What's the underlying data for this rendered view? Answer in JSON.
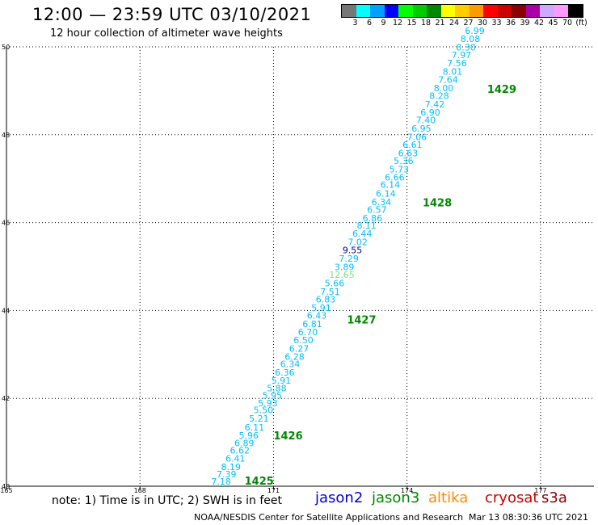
{
  "header": {
    "title": "12:00 — 23:59 UTC 03/10/2021",
    "subtitle": "12 hour collection of altimeter wave heights"
  },
  "legend": {
    "colors": [
      "#777777",
      "#00ffff",
      "#00a0ff",
      "#0000ff",
      "#00ff00",
      "#00cc00",
      "#008800",
      "#ffff00",
      "#ffcc00",
      "#ff9900",
      "#ff0000",
      "#cc0000",
      "#880000",
      "#aa00aa",
      "#ccaaff",
      "#ff99ff",
      "#000000"
    ],
    "labels": [
      "3",
      "6",
      "9",
      "12",
      "15",
      "18",
      "21",
      "24",
      "27",
      "30",
      "33",
      "36",
      "39",
      "42",
      "45",
      "70",
      "(ft)"
    ]
  },
  "axes": {
    "x_ticks": [
      "165",
      "168",
      "171",
      "174",
      "177"
    ],
    "y_ticks": [
      "40",
      "42",
      "44",
      "46",
      "48",
      "50"
    ]
  },
  "chart_data": {
    "type": "scatter",
    "xlim": [
      165,
      178.2
    ],
    "ylim": [
      40,
      50
    ],
    "grid": true,
    "label_colors": {
      "cyan": "#00bfff",
      "darkblue": "#000088",
      "lime": "#7fe07f",
      "green": "#008800"
    },
    "wave_heights_ft": [
      {
        "lon": 169.6,
        "lat": 40.04,
        "value": "7.18",
        "color": "cyan"
      },
      {
        "lon": 169.72,
        "lat": 40.2,
        "value": "7.39",
        "color": "cyan"
      },
      {
        "lon": 169.82,
        "lat": 40.37,
        "value": "8.19",
        "color": "cyan"
      },
      {
        "lon": 169.92,
        "lat": 40.56,
        "value": "6.41",
        "color": "cyan"
      },
      {
        "lon": 170.02,
        "lat": 40.74,
        "value": "6.62",
        "color": "cyan"
      },
      {
        "lon": 170.12,
        "lat": 40.91,
        "value": "6.89",
        "color": "cyan"
      },
      {
        "lon": 170.22,
        "lat": 41.08,
        "value": "5.96",
        "color": "cyan"
      },
      {
        "lon": 170.35,
        "lat": 41.27,
        "value": "6.11",
        "color": "cyan"
      },
      {
        "lon": 170.45,
        "lat": 41.47,
        "value": "5.21",
        "color": "cyan"
      },
      {
        "lon": 170.55,
        "lat": 41.66,
        "value": "5.50",
        "color": "cyan"
      },
      {
        "lon": 170.65,
        "lat": 41.82,
        "value": "5.93",
        "color": "cyan"
      },
      {
        "lon": 170.75,
        "lat": 41.99,
        "value": "5.95",
        "color": "cyan"
      },
      {
        "lon": 170.85,
        "lat": 42.16,
        "value": "5.88",
        "color": "cyan"
      },
      {
        "lon": 170.95,
        "lat": 42.33,
        "value": "5.91",
        "color": "cyan"
      },
      {
        "lon": 171.03,
        "lat": 42.52,
        "value": "6.36",
        "color": "cyan"
      },
      {
        "lon": 171.15,
        "lat": 42.71,
        "value": "6.34",
        "color": "cyan"
      },
      {
        "lon": 171.25,
        "lat": 42.88,
        "value": "6.28",
        "color": "cyan"
      },
      {
        "lon": 171.35,
        "lat": 43.06,
        "value": "6.27",
        "color": "cyan"
      },
      {
        "lon": 171.45,
        "lat": 43.25,
        "value": "6.50",
        "color": "cyan"
      },
      {
        "lon": 171.55,
        "lat": 43.44,
        "value": "6.70",
        "color": "cyan"
      },
      {
        "lon": 171.65,
        "lat": 43.62,
        "value": "6.81",
        "color": "cyan"
      },
      {
        "lon": 171.75,
        "lat": 43.81,
        "value": "6.43",
        "color": "cyan"
      },
      {
        "lon": 171.85,
        "lat": 43.99,
        "value": "5.91",
        "color": "cyan"
      },
      {
        "lon": 171.95,
        "lat": 44.18,
        "value": "6.83",
        "color": "cyan"
      },
      {
        "lon": 172.05,
        "lat": 44.36,
        "value": "7.51",
        "color": "cyan"
      },
      {
        "lon": 172.15,
        "lat": 44.55,
        "value": "5.66",
        "color": "cyan"
      },
      {
        "lon": 172.25,
        "lat": 44.74,
        "value": "12.65",
        "color": "lime"
      },
      {
        "lon": 172.37,
        "lat": 44.92,
        "value": "3.89",
        "color": "cyan"
      },
      {
        "lon": 172.47,
        "lat": 45.11,
        "value": "7.29",
        "color": "cyan"
      },
      {
        "lon": 172.55,
        "lat": 45.3,
        "value": "9.55",
        "color": "darkblue"
      },
      {
        "lon": 172.67,
        "lat": 45.49,
        "value": "7.02",
        "color": "cyan"
      },
      {
        "lon": 172.77,
        "lat": 45.68,
        "value": "6.44",
        "color": "cyan"
      },
      {
        "lon": 172.87,
        "lat": 45.86,
        "value": "8.11",
        "color": "cyan"
      },
      {
        "lon": 173.0,
        "lat": 46.03,
        "value": "6.86",
        "color": "cyan"
      },
      {
        "lon": 173.1,
        "lat": 46.22,
        "value": "6.57",
        "color": "cyan"
      },
      {
        "lon": 173.2,
        "lat": 46.4,
        "value": "6.34",
        "color": "cyan"
      },
      {
        "lon": 173.3,
        "lat": 46.59,
        "value": "6.14",
        "color": "cyan"
      },
      {
        "lon": 173.4,
        "lat": 46.79,
        "value": "6.14",
        "color": "cyan"
      },
      {
        "lon": 173.5,
        "lat": 46.96,
        "value": "6.66",
        "color": "cyan"
      },
      {
        "lon": 173.6,
        "lat": 47.14,
        "value": "5.73",
        "color": "cyan"
      },
      {
        "lon": 173.7,
        "lat": 47.33,
        "value": "5.36",
        "color": "cyan"
      },
      {
        "lon": 173.8,
        "lat": 47.51,
        "value": "6.63",
        "color": "cyan"
      },
      {
        "lon": 173.9,
        "lat": 47.7,
        "value": "6.61",
        "color": "cyan"
      },
      {
        "lon": 174.0,
        "lat": 47.88,
        "value": "7.06",
        "color": "cyan"
      },
      {
        "lon": 174.1,
        "lat": 48.07,
        "value": "6.95",
        "color": "cyan"
      },
      {
        "lon": 174.2,
        "lat": 48.26,
        "value": "7.40",
        "color": "cyan"
      },
      {
        "lon": 174.3,
        "lat": 48.44,
        "value": "6.90",
        "color": "cyan"
      },
      {
        "lon": 174.4,
        "lat": 48.62,
        "value": "7.42",
        "color": "cyan"
      },
      {
        "lon": 174.5,
        "lat": 48.81,
        "value": "8.28",
        "color": "cyan"
      },
      {
        "lon": 174.6,
        "lat": 48.99,
        "value": "8.00",
        "color": "cyan"
      },
      {
        "lon": 174.7,
        "lat": 49.18,
        "value": "7.64",
        "color": "cyan"
      },
      {
        "lon": 174.8,
        "lat": 49.37,
        "value": "8.01",
        "color": "cyan"
      },
      {
        "lon": 174.9,
        "lat": 49.56,
        "value": "7.56",
        "color": "cyan"
      },
      {
        "lon": 175.0,
        "lat": 49.74,
        "value": "7.97",
        "color": "cyan"
      },
      {
        "lon": 175.1,
        "lat": 49.92,
        "value": "8.30",
        "color": "cyan"
      },
      {
        "lon": 175.2,
        "lat": 50.11,
        "value": "8.08",
        "color": "cyan"
      },
      {
        "lon": 175.3,
        "lat": 50.29,
        "value": "6.99",
        "color": "cyan"
      }
    ],
    "time_labels": [
      {
        "lon": 170.35,
        "lat": 40.04,
        "value": "1425",
        "color": "green"
      },
      {
        "lon": 171.0,
        "lat": 41.07,
        "value": "1426",
        "color": "green"
      },
      {
        "lon": 172.65,
        "lat": 43.7,
        "value": "1427",
        "color": "green"
      },
      {
        "lon": 174.35,
        "lat": 46.37,
        "value": "1428",
        "color": "green"
      },
      {
        "lon": 175.8,
        "lat": 48.95,
        "value": "1429",
        "color": "green"
      }
    ]
  },
  "footer": {
    "note": "note: 1) Time is in UTC; 2) SWH is in feet",
    "satellites": [
      {
        "name": "jason2",
        "color": "#0000dd"
      },
      {
        "name": "jason3",
        "color": "#008800"
      },
      {
        "name": "altika",
        "color": "#ff8800"
      },
      {
        "name": "cryosat",
        "color": "#cc0000"
      },
      {
        "name": "s3a",
        "color": "#880000"
      }
    ],
    "credit": "NOAA/NESDIS Center for Satellite Applications and Research",
    "timestamp": "Mar 13 08:30:36 UTC 2021"
  }
}
